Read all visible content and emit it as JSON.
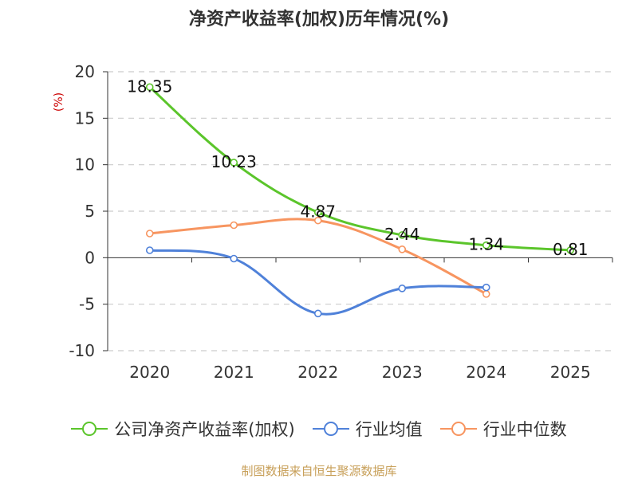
{
  "chart_data": {
    "type": "line",
    "title": "净资产收益率(加权)历年情况(%)",
    "ylabel": "(%)",
    "xlabel": "",
    "categories": [
      "2020",
      "2021",
      "2022",
      "2023",
      "2024",
      "2025"
    ],
    "ylim": [
      -10,
      20
    ],
    "yticks": [
      20,
      15,
      10,
      5,
      0,
      -5,
      -10
    ],
    "grid": true,
    "legend_position": "bottom",
    "series": [
      {
        "name": "公司净资产收益率(加权)",
        "color": "#5bc52b",
        "values": [
          18.35,
          10.23,
          4.87,
          2.44,
          1.34,
          0.81
        ],
        "labels": [
          "18.35",
          "10.23",
          "4.87",
          "2.44",
          "1.34",
          "0.81"
        ]
      },
      {
        "name": "行业均值",
        "color": "#4f81d9",
        "values": [
          0.8,
          -0.1,
          -6.0,
          -3.3,
          -3.2,
          null
        ]
      },
      {
        "name": "行业中位数",
        "color": "#f79560",
        "values": [
          2.6,
          3.5,
          4.0,
          0.9,
          -3.9,
          null
        ]
      }
    ]
  },
  "source": "制图数据来自恒生聚源数据库"
}
